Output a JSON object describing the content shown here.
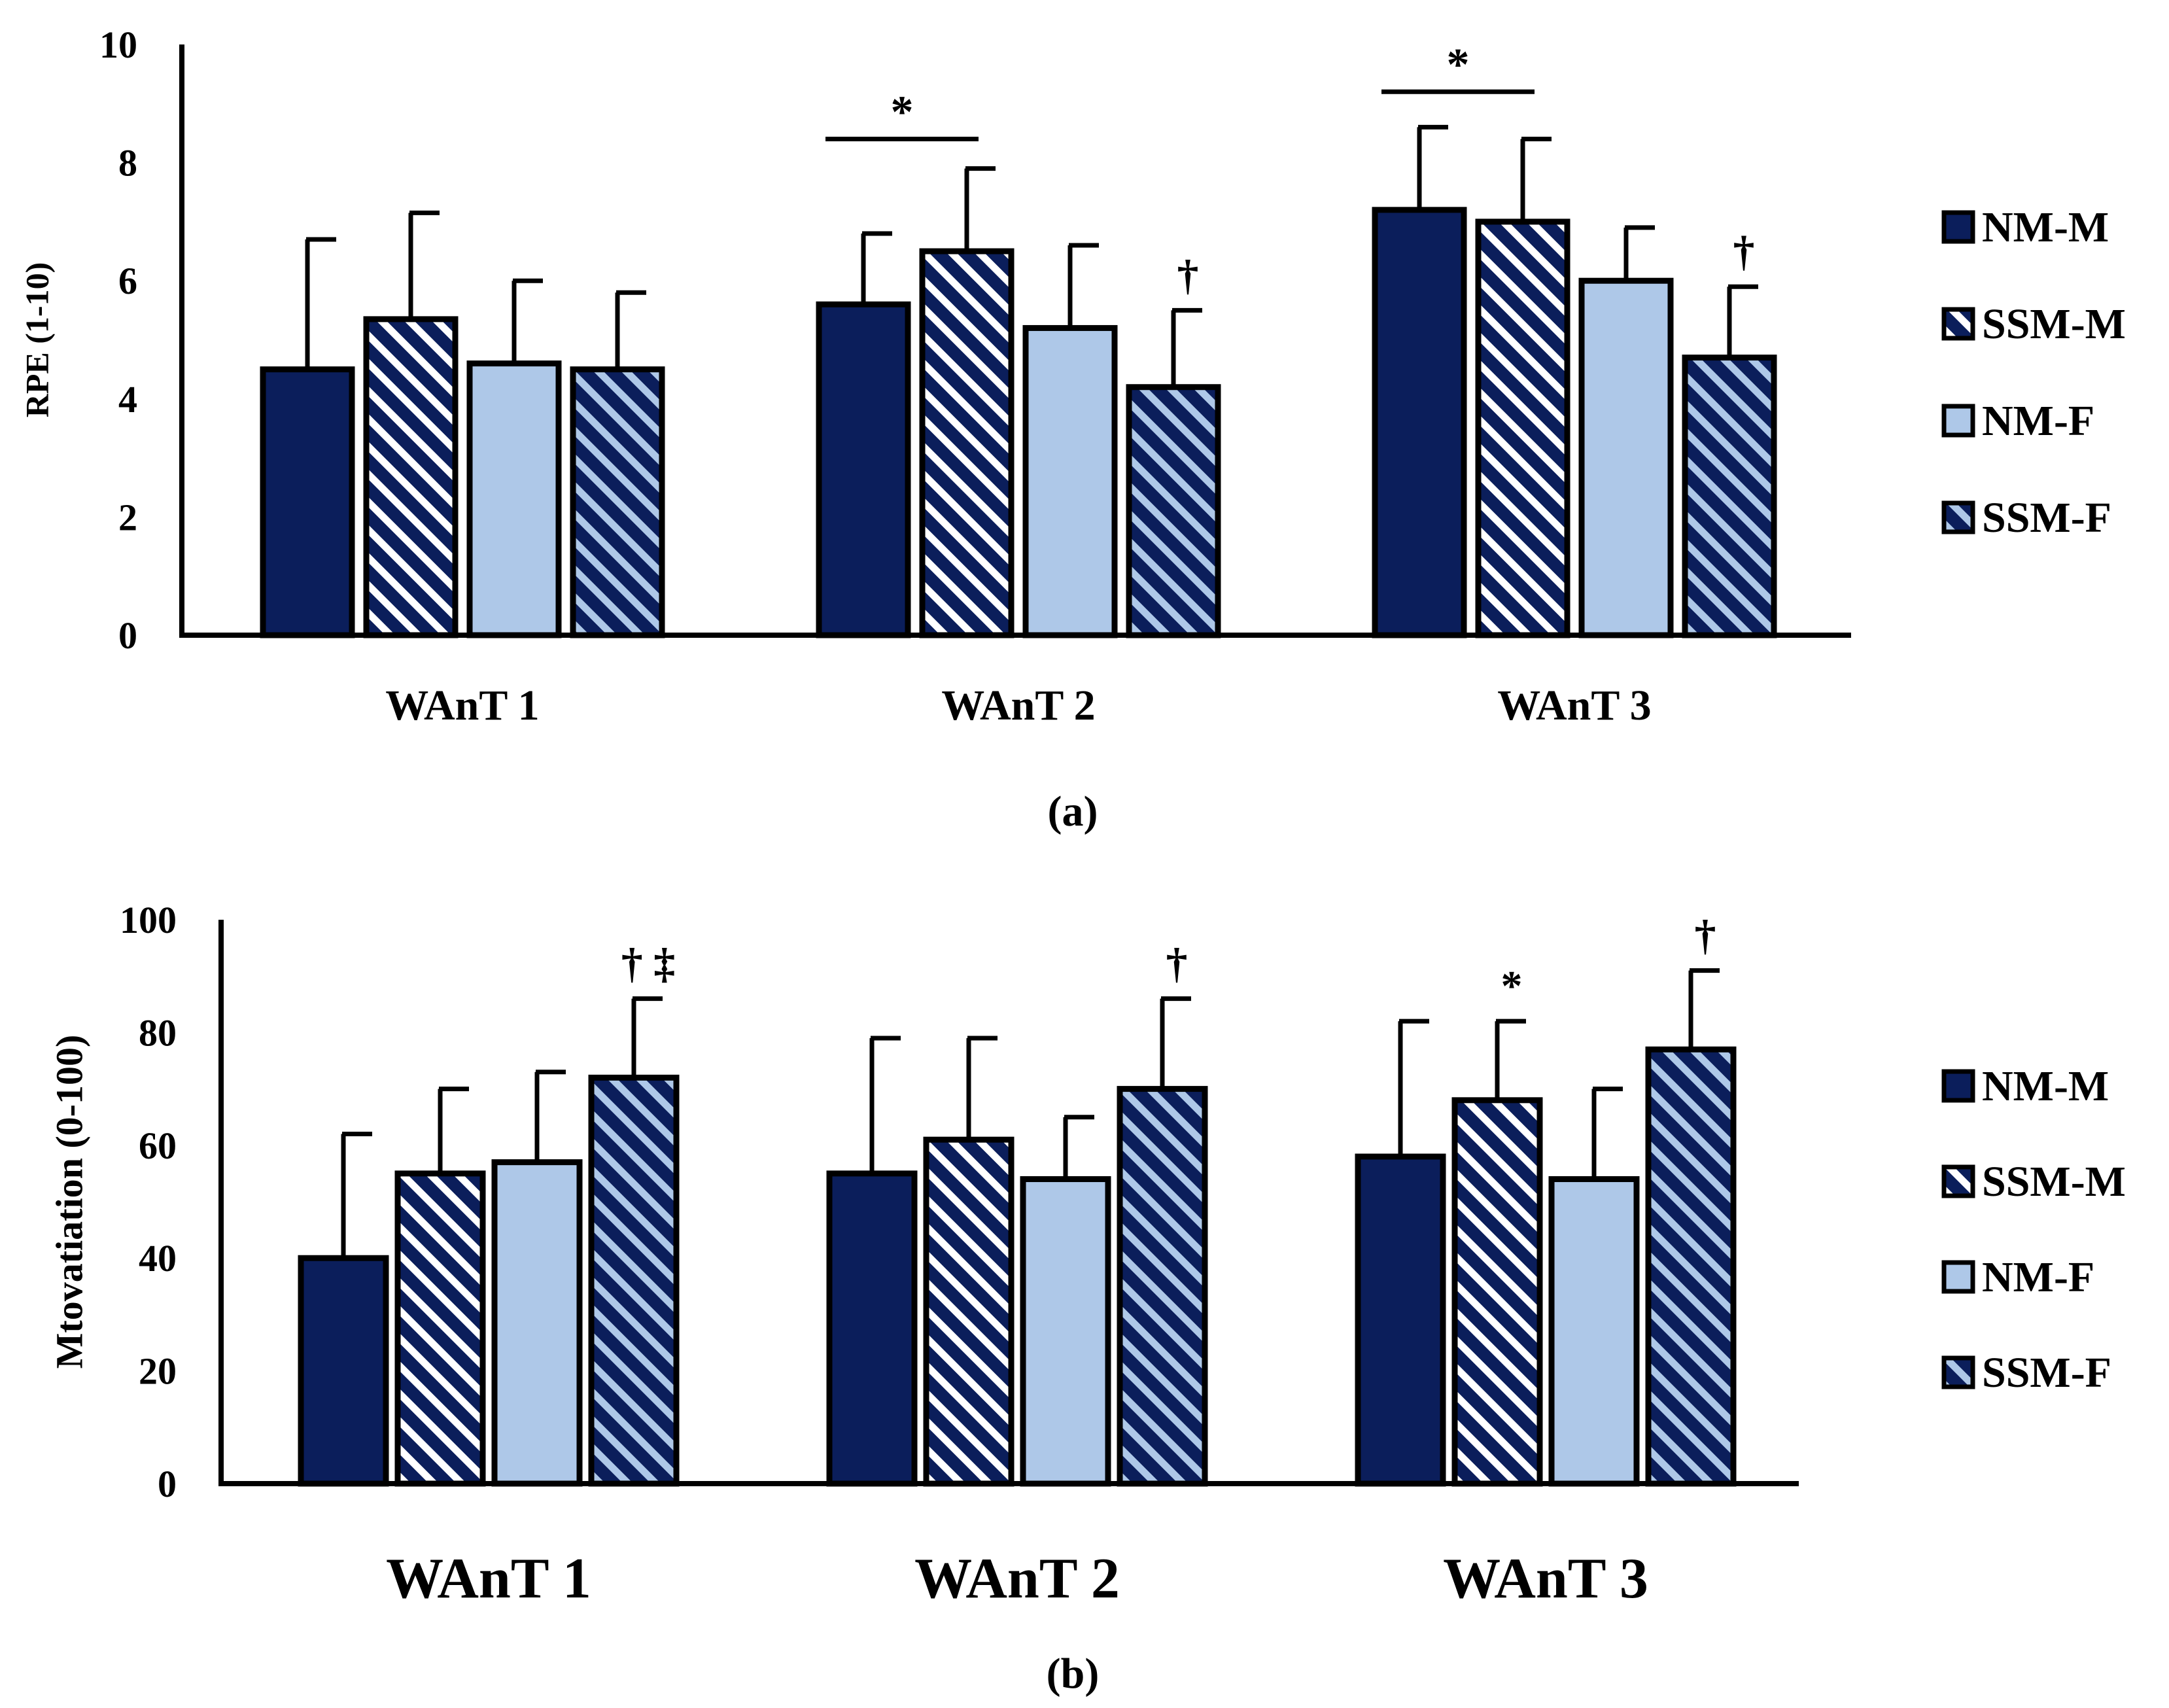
{
  "colors": {
    "navy": "#0b1e5b",
    "light_blue": "#aec8e8",
    "white": "#ffffff",
    "outline": "#000000"
  },
  "legend_items": [
    {
      "label": "NM-M",
      "fill": "navy",
      "stripe": "none"
    },
    {
      "label": "SSM-M",
      "fill": "navy",
      "stripe": "white"
    },
    {
      "label": "NM-F",
      "fill": "light_blue",
      "stripe": "none"
    },
    {
      "label": "SSM-F",
      "fill": "navy",
      "stripe": "light_blue"
    }
  ],
  "chart_data": [
    {
      "panel_label": "(a)",
      "type": "bar",
      "ylabel": "RPE (1-10)",
      "xlabel": "",
      "ylim": [
        0,
        10
      ],
      "yticks": [
        "0",
        "2",
        "4",
        "6",
        "8",
        "10"
      ],
      "categories": [
        "WAnT 1",
        "WAnT 2",
        "WAnT 3"
      ],
      "series": [
        {
          "name": "NM-M",
          "values": [
            4.5,
            5.6,
            7.2
          ],
          "errors": [
            2.2,
            1.2,
            1.4
          ]
        },
        {
          "name": "SSM-M",
          "values": [
            5.35,
            6.5,
            7.0
          ],
          "errors": [
            1.8,
            1.4,
            1.4
          ]
        },
        {
          "name": "NM-F",
          "values": [
            4.6,
            5.2,
            6.0
          ],
          "errors": [
            1.4,
            1.4,
            0.9
          ]
        },
        {
          "name": "SSM-F",
          "values": [
            4.5,
            4.2,
            4.7
          ],
          "errors": [
            1.3,
            1.3,
            1.2
          ]
        }
      ],
      "annotations": [
        {
          "text": "*",
          "type": "bracket",
          "category": 1,
          "from_series": 0,
          "to_series": 1,
          "level": 8.4
        },
        {
          "text": "*",
          "type": "bracket",
          "category": 2,
          "from_series": 0,
          "to_series": 1,
          "level": 9.2
        },
        {
          "text": "†",
          "type": "marker",
          "category": 1,
          "series": 3
        },
        {
          "text": "†",
          "type": "marker",
          "category": 2,
          "series": 3
        }
      ]
    },
    {
      "panel_label": "(b)",
      "type": "bar",
      "ylabel": "Mtovatiation (0-100)",
      "xlabel": "",
      "ylim": [
        0,
        100
      ],
      "yticks": [
        "0",
        "20",
        "40",
        "60",
        "80",
        "100"
      ],
      "categories": [
        "WAnT 1",
        "WAnT 2",
        "WAnT 3"
      ],
      "series": [
        {
          "name": "NM-M",
          "values": [
            40,
            55,
            58
          ],
          "errors": [
            22,
            24,
            24
          ]
        },
        {
          "name": "SSM-M",
          "values": [
            55,
            61,
            68
          ],
          "errors": [
            15,
            18,
            14
          ]
        },
        {
          "name": "NM-F",
          "values": [
            57,
            54,
            54
          ],
          "errors": [
            16,
            11,
            16
          ]
        },
        {
          "name": "SSM-F",
          "values": [
            72,
            70,
            77
          ],
          "errors": [
            14,
            16,
            14
          ]
        }
      ],
      "annotations": [
        {
          "text": "† ‡",
          "type": "marker",
          "category": 0,
          "series": 3
        },
        {
          "text": "†",
          "type": "marker",
          "category": 1,
          "series": 3
        },
        {
          "text": "*",
          "type": "marker",
          "category": 2,
          "series": 1
        },
        {
          "text": "†",
          "type": "marker",
          "category": 2,
          "series": 3
        }
      ]
    }
  ]
}
